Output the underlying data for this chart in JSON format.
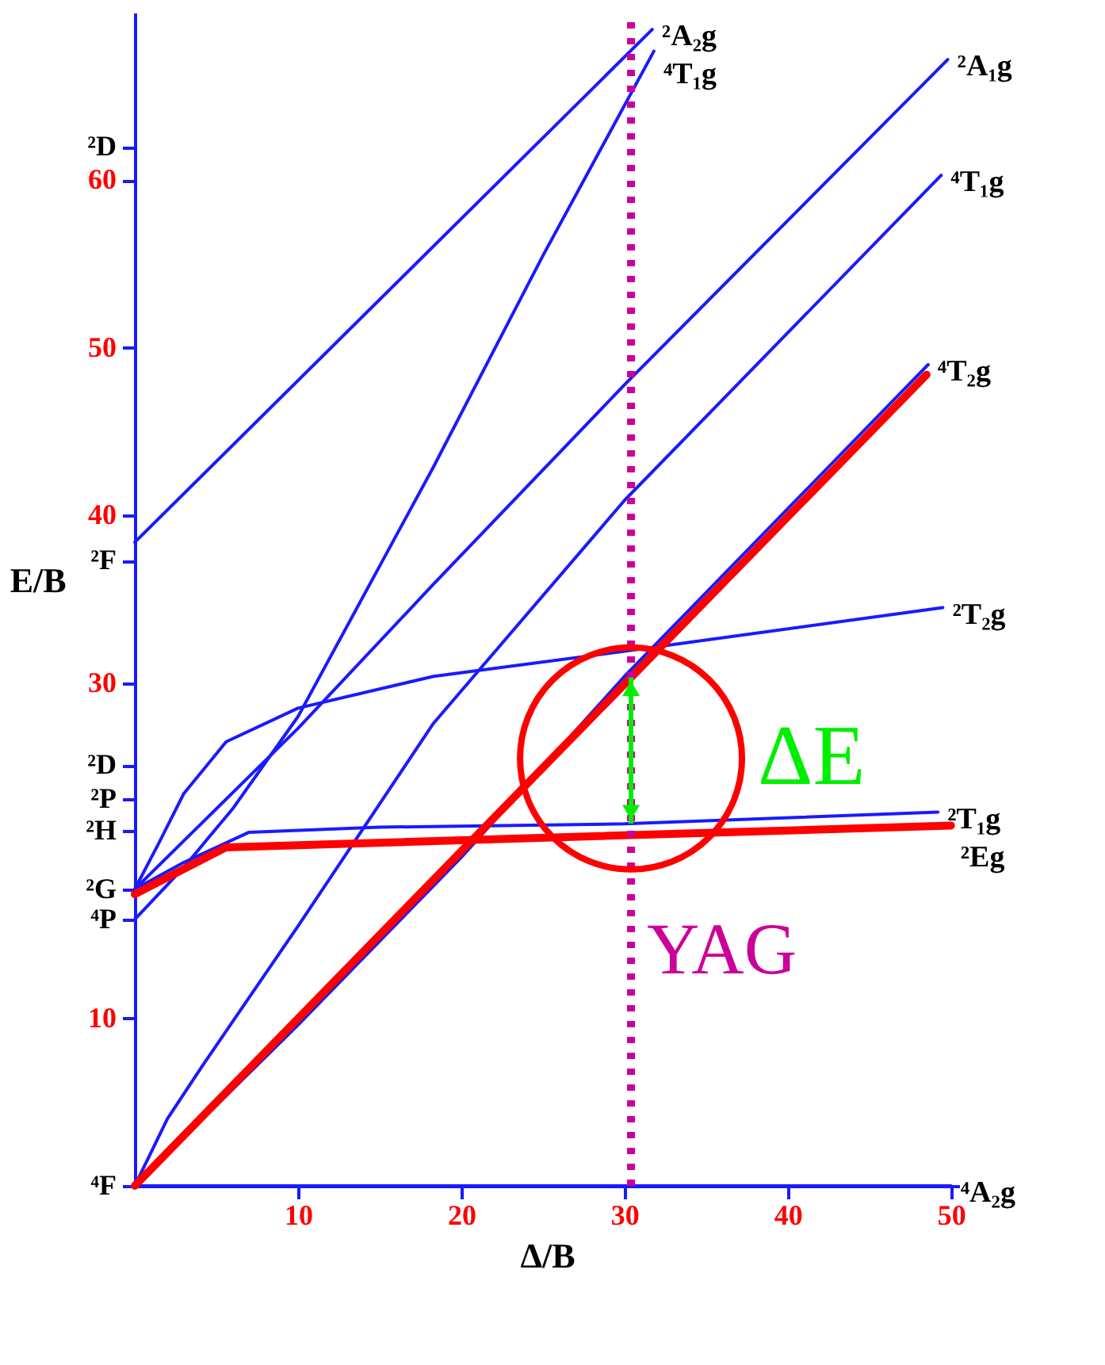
{
  "chart_data": {
    "type": "line",
    "xlabel": "Δ/B",
    "ylabel": "E/B",
    "xlim": [
      0,
      50.5
    ],
    "ylim": [
      0,
      70
    ],
    "xticks": [
      10,
      20,
      30,
      40,
      50
    ],
    "yticks": [
      10,
      30,
      40,
      50,
      60,
      {
        "value": 0,
        "label": "⁴F"
      },
      {
        "value": 15.9,
        "label": "⁴P"
      },
      {
        "value": 17.7,
        "label": "²G"
      },
      {
        "value": 21.2,
        "label": "²H"
      },
      {
        "value": 23.1,
        "label": "²P"
      },
      {
        "value": 25.1,
        "label": "²D"
      },
      {
        "value": 37.3,
        "label": "²F"
      },
      {
        "value": 62,
        "label": "²D"
      }
    ],
    "grid": false,
    "line_style": "solid",
    "series": [
      {
        "name": "⁴A₂g",
        "color": "#1a1aff",
        "x": [
          0,
          50
        ],
        "values": [
          0,
          0
        ]
      },
      {
        "name": "⁴T₂g",
        "color": "#1a1aff",
        "x": [
          0,
          10,
          20,
          30,
          48.6
        ],
        "values": [
          0,
          9.6,
          19.6,
          30.4,
          49
        ]
      },
      {
        "name": "²T₁g",
        "color": "#1a1aff",
        "x": [
          0,
          3,
          7,
          15,
          30,
          49.2
        ],
        "values": [
          17.7,
          19.3,
          21.1,
          21.4,
          21.6,
          22.3
        ]
      },
      {
        "name": "²T₂g",
        "color": "#1a1aff",
        "x": [
          0,
          1.5,
          3,
          5.6,
          10,
          18.3,
          30,
          49.5
        ],
        "values": [
          17.7,
          20.5,
          23.4,
          26.5,
          28.5,
          30.4,
          31.9,
          34.5
        ]
      },
      {
        "name": "⁴T₁g",
        "color": "#1a1aff",
        "x": [
          0,
          2,
          4.1,
          10,
          18.3,
          30,
          49.4
        ],
        "values": [
          0,
          4,
          7.1,
          15.5,
          27.6,
          40.9,
          60.3
        ]
      },
      {
        "name": "²A₁g",
        "color": "#1a1aff",
        "x": [
          0,
          5,
          10,
          18.3,
          30,
          49.8
        ],
        "values": [
          17.7,
          22.5,
          27.3,
          35.9,
          47.8,
          67.2
        ]
      },
      {
        "name": "⁴T₁g",
        "color": "#1a1aff",
        "x": [
          0,
          3,
          6,
          10,
          18.3,
          25,
          31.8
        ],
        "values": [
          15.9,
          19,
          22.5,
          28,
          42.9,
          55.5,
          67.7
        ]
      },
      {
        "name": "²A₂g",
        "color": "#1a1aff",
        "x": [
          0,
          31.7
        ],
        "values": [
          38.4,
          69
        ]
      },
      {
        "name": "²Eg",
        "color": "#ff0000",
        "x": [
          0,
          5.6,
          50
        ],
        "values": [
          17.4,
          20.2,
          21.5
        ]
      },
      {
        "color": "#ff0000",
        "x": [
          0,
          48.5
        ],
        "values": [
          0,
          48.4
        ]
      }
    ],
    "ref_lines": [
      {
        "axis": "x",
        "value": 30.4,
        "label": "YAG",
        "color": "#cc0099",
        "line_style": "dotted"
      }
    ],
    "annotations": [
      {
        "text": "ΔE",
        "x": 30.4,
        "y": 25.5
      }
    ]
  }
}
